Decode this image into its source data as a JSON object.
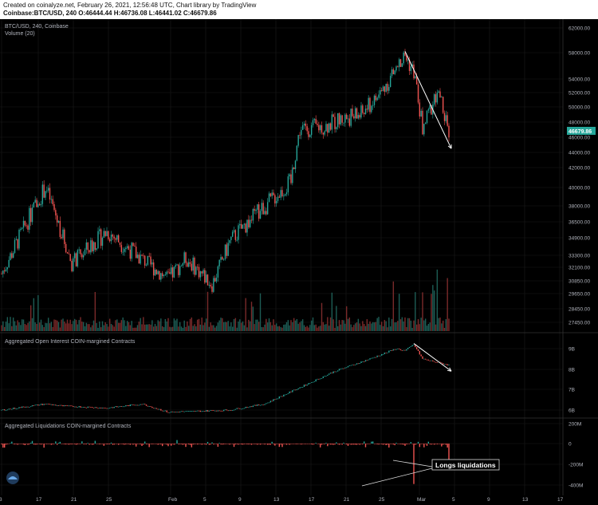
{
  "header": {
    "line1": "Created on coinalyze.net, February 26, 2021, 12:56:48 UTC, Chart library by TradingView",
    "line2": "Coinbase:BTC/USD, 240 O:46444.44 H:46736.08 L:46441.02 C:46679.86"
  },
  "colors": {
    "up": "#26a69a",
    "down": "#ef5350",
    "bg": "#000000",
    "grid": "#1b1b1b",
    "text": "#b2b5be",
    "arrow": "#ffffff"
  },
  "chart_data": [
    {
      "type": "candlestick",
      "title": "BTC/USD, 240, Coinbase",
      "subtitle": "Volume (20)",
      "last_price_label": "46679.86",
      "y_ticks": [
        "62000.00",
        "58000.00",
        "54000.00",
        "52000.00",
        "50000.00",
        "48000.00",
        "46000.00",
        "44000.00",
        "42000.00",
        "40000.00",
        "38000.00",
        "36500.00",
        "34900.00",
        "33300.00",
        "32100.00",
        "30850.00",
        "29650.00",
        "28450.00",
        "27450.00"
      ],
      "ylim_scale": "log",
      "anchors_date_price": [
        [
          "Jan 3",
          31500
        ],
        [
          "Jan 8",
          40000
        ],
        [
          "Jan 11",
          32500
        ],
        [
          "Jan 15",
          35500
        ],
        [
          "Jan 22",
          31000
        ],
        [
          "Jan 24",
          33000
        ],
        [
          "Jan 27",
          30500
        ],
        [
          "Jan 29",
          34500
        ],
        [
          "Feb 2",
          35500
        ],
        [
          "Feb 5",
          38000
        ],
        [
          "Feb 8",
          40500
        ],
        [
          "Feb 9",
          47000
        ],
        [
          "Feb 12",
          47500
        ],
        [
          "Feb 14",
          48500
        ],
        [
          "Feb 16",
          49000
        ],
        [
          "Feb 18",
          51500
        ],
        [
          "Feb 20",
          55500
        ],
        [
          "Feb 21",
          57500
        ],
        [
          "Feb 22",
          55000
        ],
        [
          "Feb 23",
          47000
        ],
        [
          "Feb 24",
          50000
        ],
        [
          "Feb 25",
          51500
        ],
        [
          "Feb 26",
          46680
        ]
      ]
    },
    {
      "type": "line",
      "title": "Aggregated Open Interest COIN-margined Contracts",
      "y_ticks": [
        "9B",
        "8B",
        "7B",
        "6B"
      ],
      "anchors_date_value": [
        [
          "Jan 3",
          6.0
        ],
        [
          "Jan 8",
          6.3
        ],
        [
          "Jan 10",
          6.2
        ],
        [
          "Jan 15",
          6.1
        ],
        [
          "Jan 19",
          6.3
        ],
        [
          "Jan 22",
          5.9
        ],
        [
          "Feb 1",
          6.0
        ],
        [
          "Feb 5",
          6.3
        ],
        [
          "Feb 9",
          7.1
        ],
        [
          "Feb 13",
          7.9
        ],
        [
          "Feb 17",
          8.5
        ],
        [
          "Feb 20",
          9.0
        ],
        [
          "Feb 21",
          8.9
        ],
        [
          "Feb 22",
          9.2
        ],
        [
          "Feb 23",
          8.5
        ],
        [
          "Feb 26",
          8.2
        ]
      ]
    },
    {
      "type": "bar",
      "title": "Aggregated Liquidations COIN-margined Contracts",
      "y_ticks": [
        "200M",
        "0",
        "-200M",
        "-400M"
      ],
      "highlight_values_M": [
        [
          "Feb 22",
          -390
        ],
        [
          "Feb 26",
          -190
        ]
      ]
    }
  ],
  "x_ticks": [
    "3",
    "17",
    "21",
    "25",
    "Feb",
    "5",
    "9",
    "13",
    "17",
    "21",
    "25",
    "Mar",
    "5",
    "9",
    "13",
    "17"
  ],
  "annotation": {
    "text": "Longs liquidations"
  }
}
